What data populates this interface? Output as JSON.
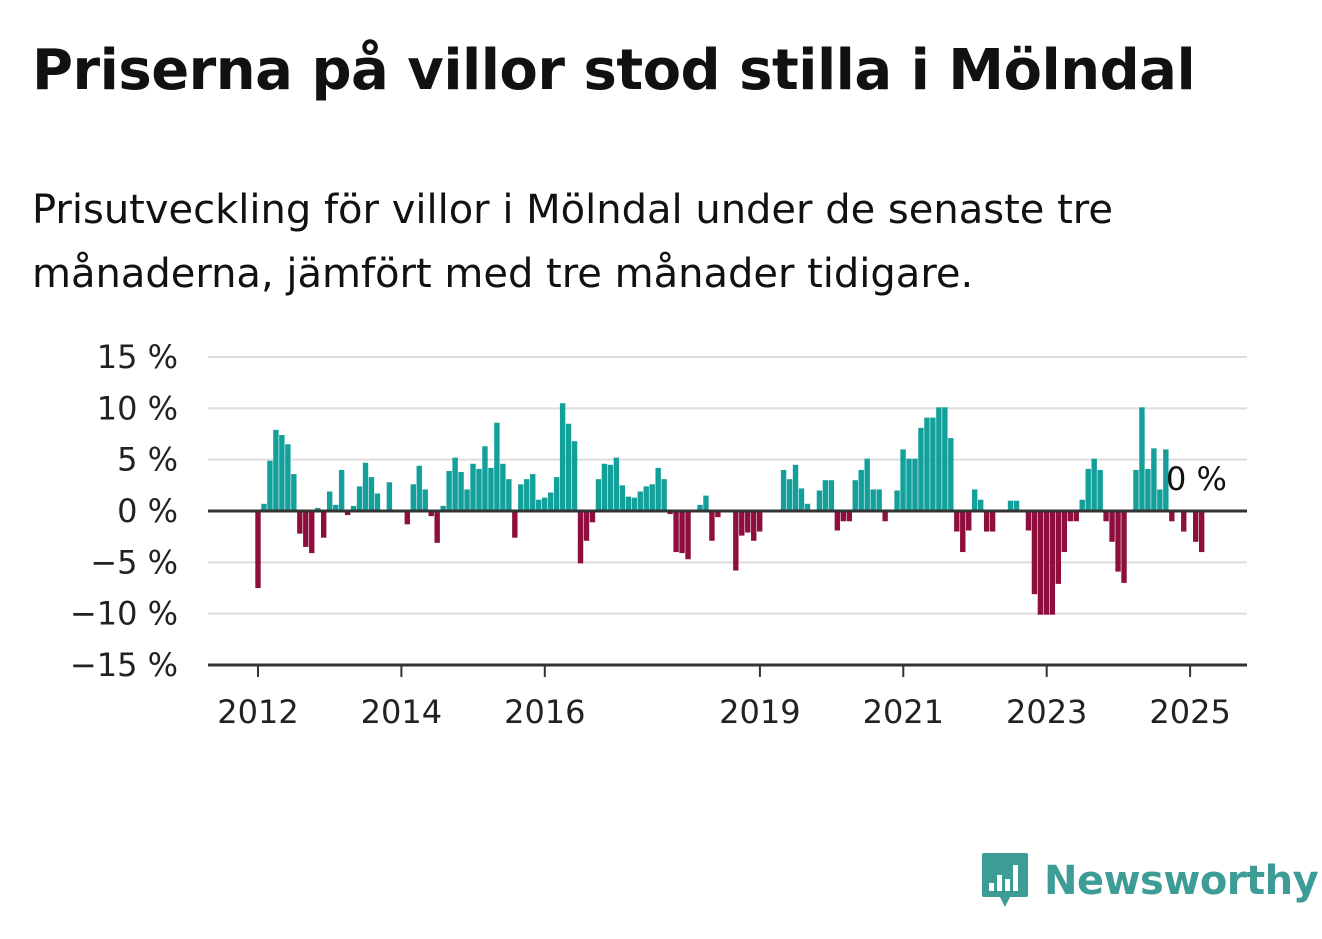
{
  "header": {
    "title": "Priserna på villor stod stilla i Mölndal",
    "subtitle": "Prisutveckling för villor i Mölndal under de senaste tre månaderna, jämfört med tre månader tidigare."
  },
  "logo": {
    "text": "Newsworthy",
    "color": "#3d9c96",
    "icon": "bar-chart-speech-bubble-icon"
  },
  "colors": {
    "positive": "#14a09a",
    "negative": "#8e0f3e",
    "grid": "#dddddd",
    "axis": "#333333"
  },
  "chart_data": {
    "type": "bar",
    "title": "Priserna på villor stod stilla i Mölndal",
    "ylim": [
      -15,
      15
    ],
    "yticks": [
      15,
      10,
      5,
      0,
      -5,
      -10,
      -15
    ],
    "ytick_labels": [
      "15 %",
      "10 %",
      "5 %",
      "0 %",
      "−5 %",
      "−10 %",
      "−15 %"
    ],
    "xticks": [
      2012,
      2014,
      2016,
      2019,
      2021,
      2023,
      2025
    ],
    "x_start": 2012,
    "x_step": 0.0833,
    "grid": true,
    "end_label": "0 %",
    "values": [
      -7.5,
      0.7,
      4.9,
      7.9,
      7.4,
      6.5,
      3.6,
      -2.2,
      -3.5,
      -4.1,
      0.3,
      -2.6,
      1.9,
      0.6,
      4.0,
      -0.4,
      0.5,
      2.4,
      4.7,
      3.3,
      1.7,
      0.0,
      2.8,
      0.0,
      0.0,
      -1.3,
      2.6,
      4.4,
      2.1,
      -0.5,
      -3.1,
      0.5,
      3.9,
      5.2,
      3.8,
      2.1,
      4.6,
      4.1,
      6.3,
      4.2,
      8.6,
      4.6,
      3.1,
      -2.6,
      2.6,
      3.1,
      3.6,
      1.1,
      1.3,
      1.8,
      3.3,
      10.5,
      8.5,
      6.8,
      -5.1,
      -2.9,
      -1.1,
      3.1,
      4.6,
      4.5,
      5.2,
      2.5,
      1.4,
      1.3,
      1.9,
      2.4,
      2.6,
      4.2,
      3.1,
      -0.3,
      -4.0,
      -4.1,
      -4.7,
      0.0,
      0.6,
      1.5,
      -2.9,
      -0.6,
      0.0,
      0.0,
      -5.8,
      -2.4,
      -2.1,
      -2.9,
      -2.0,
      0.0,
      0.0,
      0.0,
      4.0,
      3.1,
      4.5,
      2.2,
      0.7,
      0.0,
      2.0,
      3.0,
      3.0,
      -1.9,
      -1.0,
      -1.0,
      3.0,
      4.0,
      5.1,
      2.1,
      2.1,
      -1.0,
      0.0,
      2.0,
      6.0,
      5.1,
      5.1,
      8.1,
      9.1,
      9.1,
      10.1,
      10.1,
      7.1,
      -2.0,
      -4.0,
      -1.9,
      2.1,
      1.1,
      -2.0,
      -2.0,
      0.0,
      0.0,
      1.0,
      1.0,
      0.0,
      -1.9,
      -8.1,
      -10.1,
      -10.1,
      -10.1,
      -7.1,
      -4.0,
      -1.0,
      -1.0,
      1.1,
      4.1,
      5.1,
      4.0,
      -1.0,
      -3.0,
      -5.9,
      -7.0,
      0.0,
      4.0,
      10.1,
      4.1,
      6.1,
      2.1,
      6.0,
      -1.0,
      0.0,
      -2.0,
      0.0,
      -3.0,
      -4.0,
      0.0
    ]
  }
}
